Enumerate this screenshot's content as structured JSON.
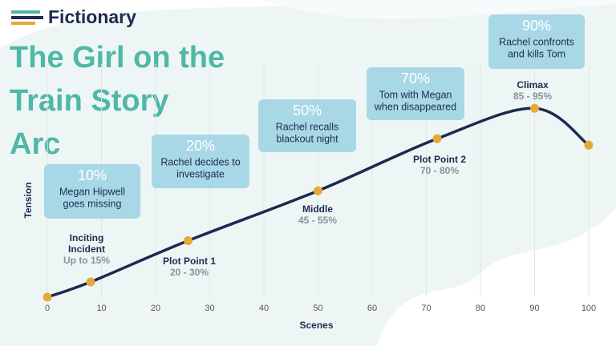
{
  "chart_data": {
    "type": "line",
    "brand": "Fictionary",
    "title": [
      "The Girl on the",
      "Train Story",
      "Arc"
    ],
    "x_label": "Scenes",
    "y_label": "Tension",
    "x": [
      0,
      8,
      26,
      50,
      72,
      90,
      100
    ],
    "values": [
      0,
      7,
      26,
      49,
      73,
      87,
      70
    ],
    "color": "#1b2a4e",
    "point_color": "#e8a838",
    "xlim": [
      0,
      100
    ],
    "ylim": [
      0,
      100
    ],
    "xticks": [
      0,
      10,
      20,
      30,
      40,
      50,
      60,
      70,
      80,
      90,
      100
    ],
    "grid": true,
    "milestones": [
      {
        "name": [
          "Inciting",
          "Incident"
        ],
        "range": "Up to 15%"
      },
      {
        "name": [
          "Plot Point 1"
        ],
        "range": "20 - 30%"
      },
      {
        "name": [
          "Middle"
        ],
        "range": "45 - 55%"
      },
      {
        "name": [
          "Plot Point 2"
        ],
        "range": "70 - 80%"
      },
      {
        "name": [
          "Climax"
        ],
        "range": "85 - 95%"
      }
    ],
    "callouts": [
      {
        "percent": "10%",
        "text": [
          "Megan Hipwell",
          "goes missing"
        ]
      },
      {
        "percent": "20%",
        "text": [
          "Rachel decides to",
          "investigate"
        ]
      },
      {
        "percent": "50%",
        "text": [
          "Rachel recalls",
          "blackout night"
        ]
      },
      {
        "percent": "70%",
        "text": [
          "Tom with Megan",
          "when disappeared"
        ]
      },
      {
        "percent": "90%",
        "text": [
          "Rachel confronts",
          "and kills Tom"
        ]
      }
    ]
  }
}
